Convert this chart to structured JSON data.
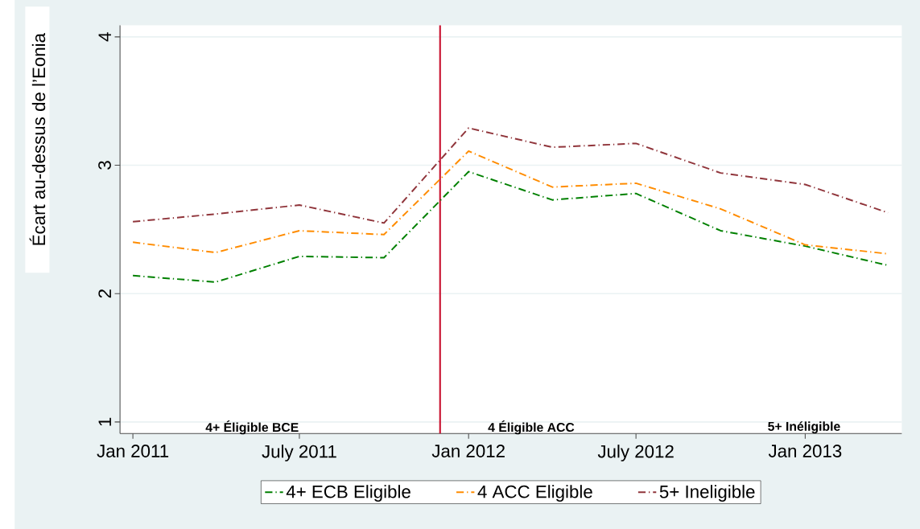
{
  "chart_data": {
    "type": "line",
    "ylabel": "Écart au-dessus de l’Eonia",
    "x": [
      "2011-01-01",
      "2011-04-01",
      "2011-07-01",
      "2011-10-01",
      "2012-01-01",
      "2012-04-01",
      "2012-07-01",
      "2012-10-01",
      "2013-01-01",
      "2013-04-01"
    ],
    "series": [
      {
        "name": "4+ ECB Eligible",
        "color": "#008000",
        "values": [
          2.14,
          2.09,
          2.29,
          2.28,
          2.95,
          2.73,
          2.78,
          2.49,
          2.37,
          2.22
        ]
      },
      {
        "name": "4 ACC Eligible",
        "color": "#ff8c00",
        "values": [
          2.4,
          2.32,
          2.49,
          2.46,
          3.11,
          2.83,
          2.86,
          2.66,
          2.38,
          2.31
        ]
      },
      {
        "name": "5+ Ineligible",
        "color": "#90353b",
        "values": [
          2.56,
          2.62,
          2.69,
          2.55,
          3.29,
          3.14,
          3.17,
          2.94,
          2.85,
          2.63
        ]
      }
    ],
    "xlim": [
      "2010-12-18",
      "2013-04-16"
    ],
    "xticks": [
      {
        "value": "2011-01-01",
        "label": "Jan 2011"
      },
      {
        "value": "2011-07-01",
        "label": "July 2011"
      },
      {
        "value": "2012-01-01",
        "label": "Jan 2012"
      },
      {
        "value": "2012-07-01",
        "label": "July 2012"
      },
      {
        "value": "2013-01-01",
        "label": "Jan 2013"
      }
    ],
    "ylim": [
      0.91,
      4.09
    ],
    "yticks": [
      1,
      2,
      3,
      4
    ],
    "grid": "y",
    "legend": "bottom",
    "marker": "none",
    "line_style": "dashdot",
    "ref_lines": [
      {
        "axis": "x",
        "value": "2011-12-01",
        "color": "#c8102e"
      }
    ],
    "annotations": [
      "4+ Éligible BCE",
      "4 Éligible ACC",
      "5+ Inéligible"
    ]
  }
}
